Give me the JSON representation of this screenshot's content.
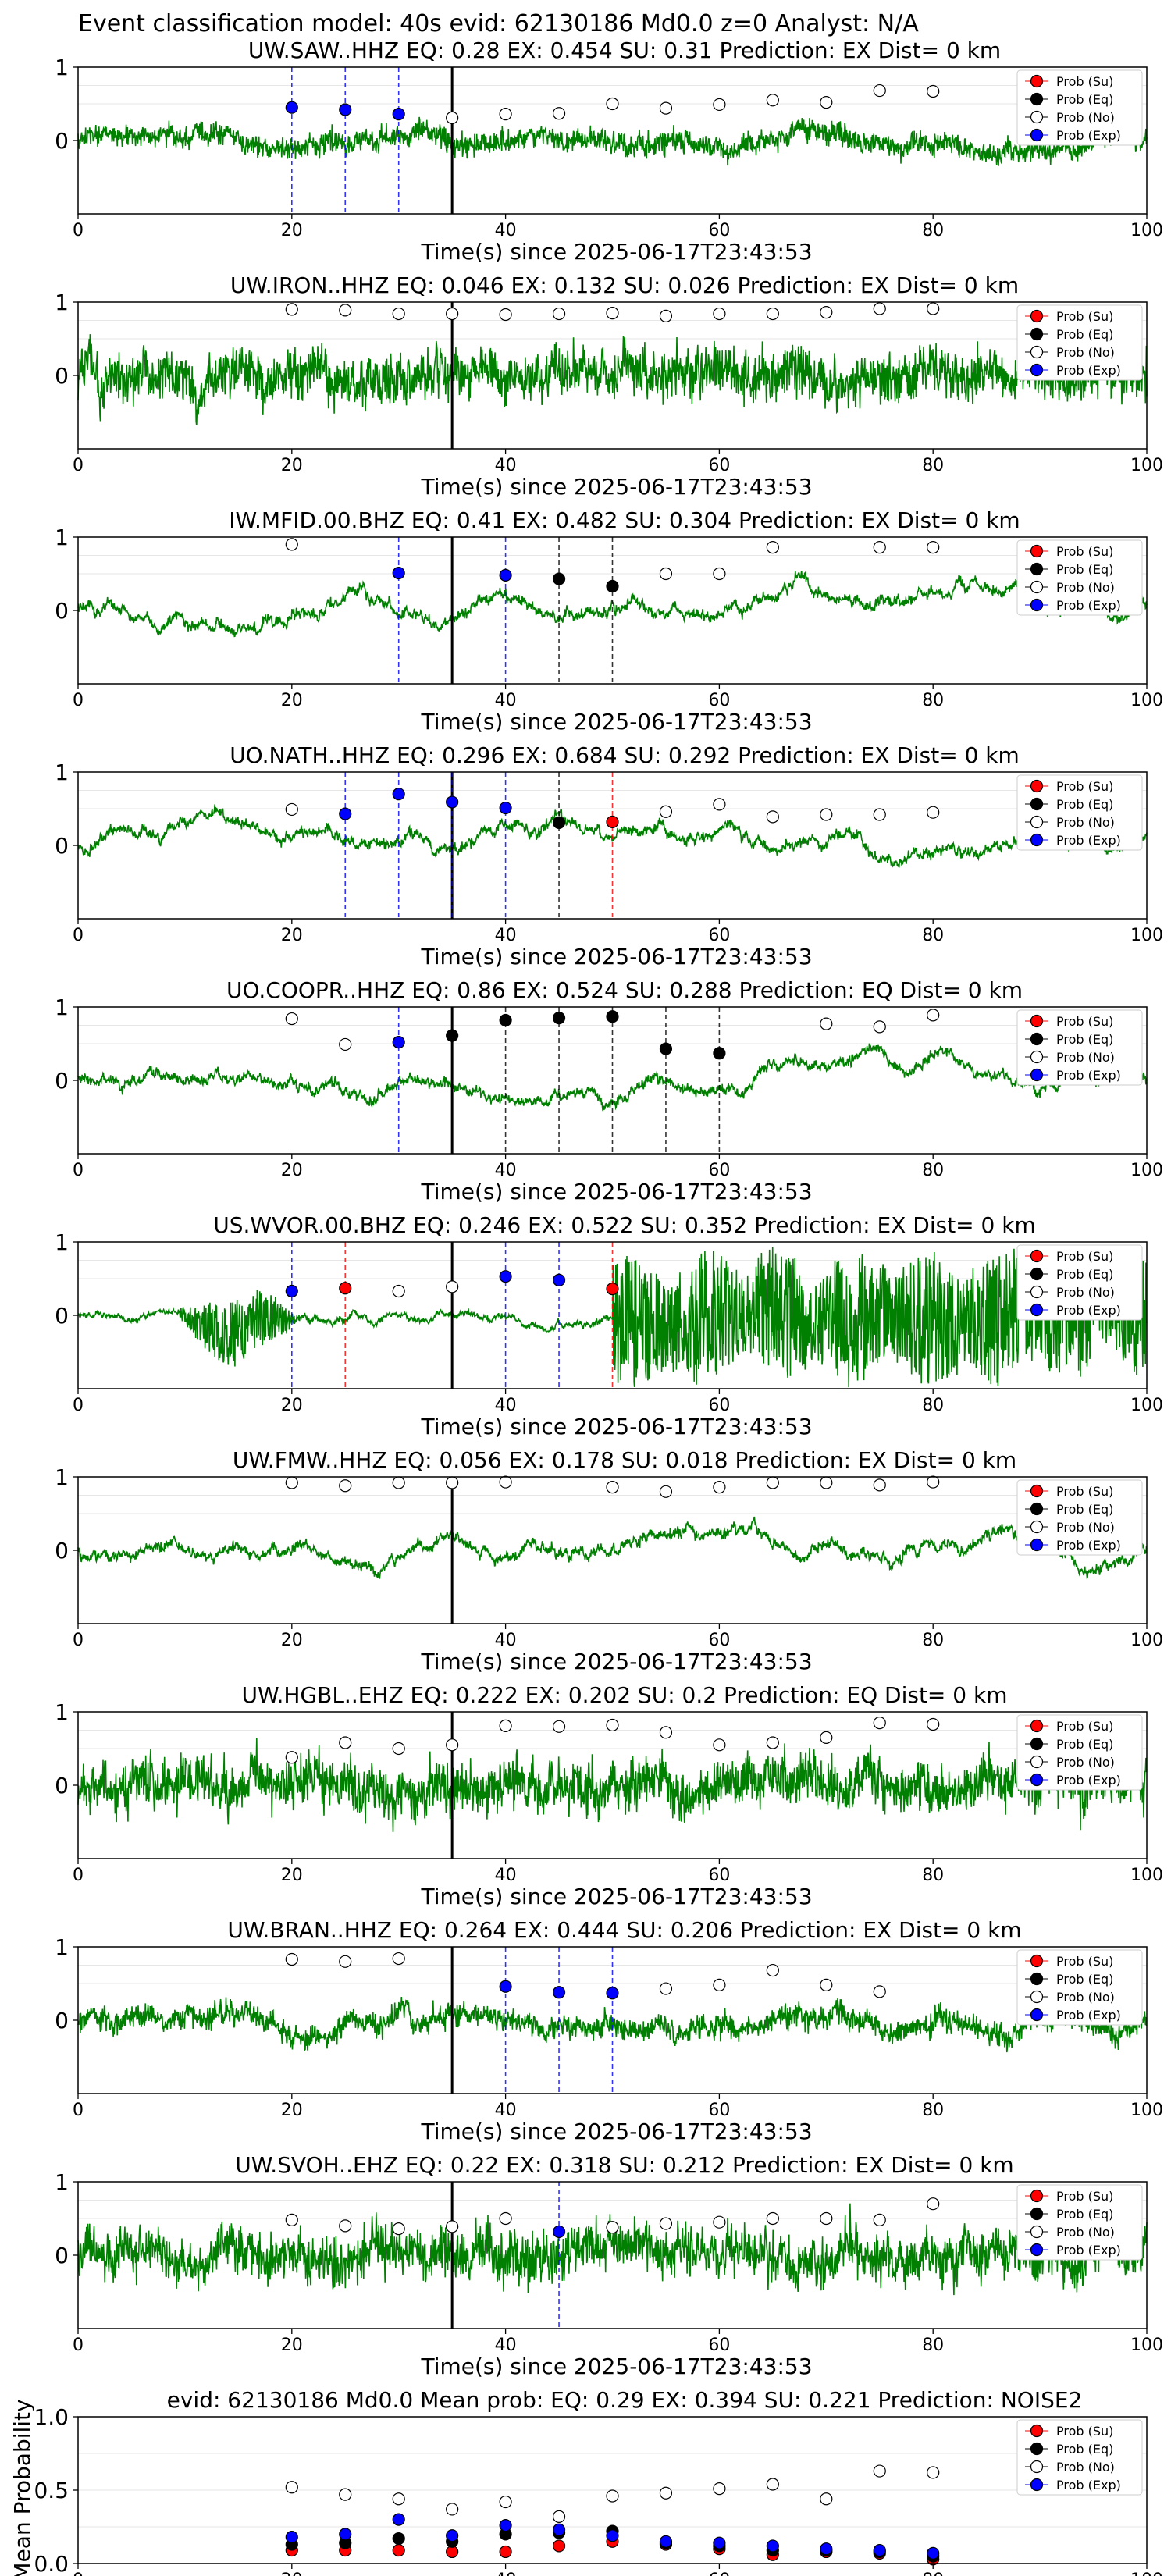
{
  "suptitle": "Event classification model: 40s evid: 62130186 Md0.0 z=0 Analyst: N/A",
  "xlabel": "Time(s) since 2025-06-17T23:43:53",
  "x_ticks": [
    0,
    20,
    40,
    60,
    80,
    100
  ],
  "y_ticks": [
    0,
    1
  ],
  "legend_labels": [
    "Prob (Su)",
    "Prob (Eq)",
    "Prob (No)",
    "Prob (Exp)"
  ],
  "colors": {
    "trace": "#008000",
    "su": "#ff0000",
    "eq": "#000000",
    "no": "#ffffff",
    "exp": "#0000ff",
    "pick": "#000000",
    "grid": "#e6e6e6"
  },
  "chart_data": [
    {
      "type": "line",
      "title": "UW.SAW..HHZ   EQ: 0.28  EX: 0.454  SU: 0.31   Prediction: EX    Dist= 0 km",
      "xlim": [
        0,
        100
      ],
      "ylim": [
        -1,
        1
      ],
      "pick_time": 35,
      "waveform_style": "medium",
      "marker_times": [
        20,
        25,
        30,
        35,
        40,
        45,
        50,
        55,
        60,
        65,
        70,
        75,
        80
      ],
      "markers": [
        "exp",
        "exp",
        "exp",
        "no",
        "no",
        "no",
        "no",
        "no",
        "no",
        "no",
        "no",
        "no",
        "no"
      ],
      "marker_values": [
        0.45,
        0.42,
        0.36,
        0.31,
        0.36,
        0.37,
        0.5,
        0.44,
        0.49,
        0.55,
        0.52,
        0.68,
        0.67
      ]
    },
    {
      "type": "line",
      "title": "UW.IRON..HHZ   EQ: 0.046  EX: 0.132  SU: 0.026   Prediction: EX    Dist= 0 km",
      "xlim": [
        0,
        100
      ],
      "ylim": [
        -1,
        1
      ],
      "pick_time": 35,
      "waveform_style": "dense",
      "marker_times": [
        20,
        25,
        30,
        35,
        40,
        45,
        50,
        55,
        60,
        65,
        70,
        75,
        80
      ],
      "markers": [
        "no",
        "no",
        "no",
        "no",
        "no",
        "no",
        "no",
        "no",
        "no",
        "no",
        "no",
        "no",
        "no"
      ],
      "marker_values": [
        0.9,
        0.89,
        0.84,
        0.84,
        0.83,
        0.84,
        0.85,
        0.81,
        0.84,
        0.84,
        0.86,
        0.91,
        0.91
      ]
    },
    {
      "type": "line",
      "title": "IW.MFID.00.BHZ   EQ: 0.41  EX: 0.482  SU: 0.304   Prediction: EX    Dist= 0 km",
      "xlim": [
        0,
        100
      ],
      "ylim": [
        -1,
        1
      ],
      "pick_time": 35,
      "waveform_style": "smooth",
      "marker_times": [
        20,
        30,
        40,
        45,
        50,
        55,
        60,
        65,
        75,
        80
      ],
      "markers": [
        "no",
        "exp",
        "exp",
        "eq",
        "eq",
        "no",
        "no",
        "no",
        "no",
        "no"
      ],
      "marker_values": [
        0.9,
        0.51,
        0.48,
        0.43,
        0.33,
        0.5,
        0.5,
        0.86,
        0.86,
        0.86
      ]
    },
    {
      "type": "line",
      "title": "UO.NATH..HHZ   EQ: 0.296  EX: 0.684  SU: 0.292   Prediction: EX    Dist= 0 km",
      "xlim": [
        0,
        100
      ],
      "ylim": [
        -1,
        1
      ],
      "pick_time": 35,
      "waveform_style": "smooth",
      "marker_times": [
        20,
        25,
        30,
        35,
        40,
        45,
        50,
        55,
        60,
        65,
        70,
        75,
        80
      ],
      "markers": [
        "no",
        "exp",
        "exp",
        "exp",
        "exp",
        "eq",
        "su",
        "no",
        "no",
        "no",
        "no",
        "no",
        "no"
      ],
      "marker_values": [
        0.49,
        0.43,
        0.7,
        0.59,
        0.51,
        0.31,
        0.32,
        0.46,
        0.56,
        0.39,
        0.42,
        0.42,
        0.45
      ]
    },
    {
      "type": "line",
      "title": "UO.COOPR..HHZ   EQ: 0.86  EX: 0.524  SU: 0.288   Prediction: EQ    Dist= 0 km",
      "xlim": [
        0,
        100
      ],
      "ylim": [
        -1,
        1
      ],
      "pick_time": 35,
      "waveform_style": "smooth",
      "marker_times": [
        20,
        25,
        30,
        35,
        40,
        45,
        50,
        55,
        60,
        70,
        75,
        80
      ],
      "markers": [
        "no",
        "no",
        "exp",
        "eq",
        "eq",
        "eq",
        "eq",
        "eq",
        "eq",
        "no",
        "no",
        "no"
      ],
      "marker_values": [
        0.84,
        0.49,
        0.52,
        0.61,
        0.82,
        0.85,
        0.87,
        0.43,
        0.37,
        0.77,
        0.73,
        0.89
      ]
    },
    {
      "type": "line",
      "title": "US.WVOR.00.BHZ   EQ: 0.246  EX: 0.522  SU: 0.352   Prediction: EX    Dist= 0 km",
      "xlim": [
        0,
        100
      ],
      "ylim": [
        -1,
        1
      ],
      "pick_time": 35,
      "waveform_style": "wvor",
      "marker_times": [
        20,
        25,
        30,
        35,
        40,
        45,
        50
      ],
      "markers": [
        "exp",
        "su",
        "no",
        "no",
        "exp",
        "exp",
        "su"
      ],
      "marker_values": [
        0.33,
        0.37,
        0.33,
        0.39,
        0.53,
        0.48,
        0.36
      ]
    },
    {
      "type": "line",
      "title": "UW.FMW..HHZ   EQ: 0.056  EX: 0.178  SU: 0.018   Prediction: EX    Dist= 0 km",
      "xlim": [
        0,
        100
      ],
      "ylim": [
        -1,
        1
      ],
      "pick_time": 35,
      "waveform_style": "smooth",
      "marker_times": [
        20,
        25,
        30,
        35,
        40,
        50,
        55,
        60,
        65,
        70,
        75,
        80
      ],
      "markers": [
        "no",
        "no",
        "no",
        "no",
        "no",
        "no",
        "no",
        "no",
        "no",
        "no",
        "no",
        "no"
      ],
      "marker_values": [
        0.92,
        0.88,
        0.92,
        0.92,
        0.93,
        0.86,
        0.8,
        0.86,
        0.92,
        0.92,
        0.89,
        0.93
      ]
    },
    {
      "type": "line",
      "title": "UW.HGBL..EHZ   EQ: 0.222  EX: 0.202  SU: 0.2   Prediction: EQ    Dist= 0 km",
      "xlim": [
        0,
        100
      ],
      "ylim": [
        -1,
        1
      ],
      "pick_time": 35,
      "waveform_style": "dense",
      "marker_times": [
        20,
        25,
        30,
        35,
        40,
        45,
        50,
        55,
        60,
        65,
        70,
        75,
        80
      ],
      "markers": [
        "no",
        "no",
        "no",
        "no",
        "no",
        "no",
        "no",
        "no",
        "no",
        "no",
        "no",
        "no",
        "no"
      ],
      "marker_values": [
        0.38,
        0.58,
        0.5,
        0.55,
        0.81,
        0.8,
        0.82,
        0.72,
        0.55,
        0.58,
        0.65,
        0.85,
        0.83
      ]
    },
    {
      "type": "line",
      "title": "UW.BRAN..HHZ   EQ: 0.264  EX: 0.444  SU: 0.206   Prediction: EX    Dist= 0 km",
      "xlim": [
        0,
        100
      ],
      "ylim": [
        -1,
        1
      ],
      "pick_time": 35,
      "waveform_style": "medium",
      "marker_times": [
        20,
        25,
        30,
        40,
        45,
        50,
        55,
        60,
        65,
        70,
        75
      ],
      "markers": [
        "no",
        "no",
        "no",
        "exp",
        "exp",
        "exp",
        "no",
        "no",
        "no",
        "no",
        "no"
      ],
      "marker_values": [
        0.83,
        0.8,
        0.84,
        0.46,
        0.38,
        0.37,
        0.43,
        0.48,
        0.68,
        0.48,
        0.39
      ]
    },
    {
      "type": "line",
      "title": "UW.SVOH..EHZ   EQ: 0.22  EX: 0.318  SU: 0.212   Prediction: EX    Dist= 0 km",
      "xlim": [
        0,
        100
      ],
      "ylim": [
        -1,
        1
      ],
      "pick_time": 35,
      "waveform_style": "dense",
      "marker_times": [
        20,
        25,
        30,
        35,
        40,
        45,
        50,
        55,
        60,
        65,
        70,
        75,
        80
      ],
      "markers": [
        "no",
        "no",
        "no",
        "no",
        "no",
        "exp",
        "no",
        "no",
        "no",
        "no",
        "no",
        "no",
        "no"
      ],
      "marker_values": [
        0.48,
        0.4,
        0.36,
        0.39,
        0.5,
        0.32,
        0.38,
        0.43,
        0.45,
        0.5,
        0.5,
        0.48,
        0.7
      ]
    },
    {
      "type": "scatter",
      "title": "evid: 62130186  Md0.0   Mean prob:   EQ: 0.29  EX: 0.394  SU: 0.221   Prediction: NOISE2",
      "ylabel": "Mean Probability",
      "xlim": [
        0,
        100
      ],
      "ylim": [
        0,
        1
      ],
      "y_ticks": [
        0.0,
        0.5,
        1.0
      ],
      "x": [
        20,
        25,
        30,
        35,
        40,
        45,
        50,
        55,
        60,
        65,
        70,
        75,
        80
      ],
      "series": [
        {
          "name": "Prob (Su)",
          "key": "su",
          "values": [
            0.09,
            0.09,
            0.09,
            0.08,
            0.08,
            0.12,
            0.15,
            0.13,
            0.1,
            0.06,
            0.08,
            0.07,
            0.03
          ]
        },
        {
          "name": "Prob (Eq)",
          "key": "eq",
          "values": [
            0.13,
            0.14,
            0.17,
            0.15,
            0.2,
            0.21,
            0.22,
            0.14,
            0.12,
            0.09,
            0.09,
            0.08,
            0.05
          ]
        },
        {
          "name": "Prob (No)",
          "key": "no",
          "values": [
            0.52,
            0.47,
            0.44,
            0.37,
            0.42,
            0.32,
            0.46,
            0.48,
            0.51,
            0.54,
            0.44,
            0.63,
            0.62
          ]
        },
        {
          "name": "Prob (Exp)",
          "key": "exp",
          "values": [
            0.18,
            0.2,
            0.3,
            0.19,
            0.26,
            0.23,
            0.19,
            0.15,
            0.14,
            0.12,
            0.1,
            0.09,
            0.07
          ]
        }
      ]
    }
  ]
}
